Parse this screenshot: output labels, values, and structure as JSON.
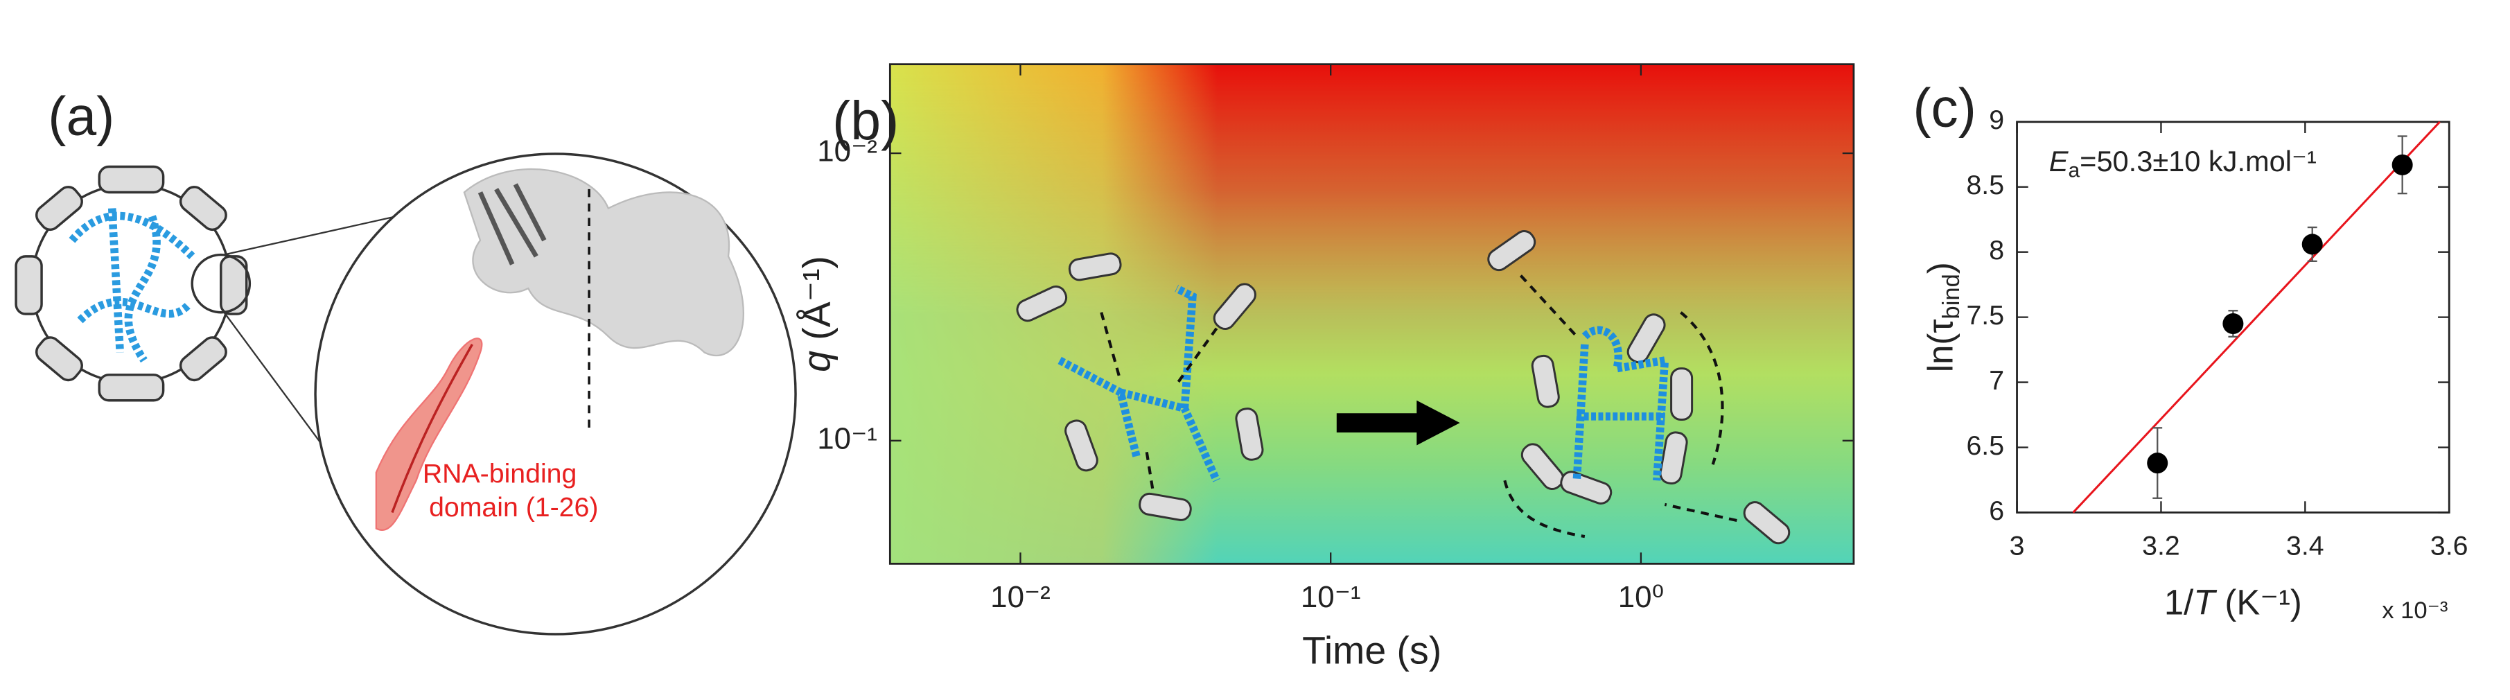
{
  "figure_a": {
    "label": "(a)",
    "annotation": [
      "RNA-binding",
      "domain (1-26)"
    ]
  },
  "chart_data": [
    {
      "type": "heatmap",
      "label": "(b)",
      "xlabel": [
        "Time (s)"
      ],
      "ylabel": [
        "q",
        " (Å⁻¹)"
      ],
      "xlog": true,
      "ylog": true,
      "y_inverted": true,
      "xlim": [
        0.0038,
        4.85
      ],
      "ylim": [
        0.0049,
        0.268
      ],
      "xticks": [
        {
          "value": 0.01,
          "label": "10⁻²"
        },
        {
          "value": 0.1,
          "label": "10⁻¹"
        },
        {
          "value": 1,
          "label": "10⁰"
        }
      ],
      "yticks": [
        {
          "value": 0.01,
          "label": "10⁻²"
        },
        {
          "value": 0.1,
          "label": "10⁻¹"
        }
      ]
    },
    {
      "type": "scatter",
      "label": "(c)",
      "xlabel": [
        "1/",
        "T",
        " (K⁻¹)"
      ],
      "ylabel": [
        "ln(τ",
        "bind",
        ")"
      ],
      "annotation": [
        "E",
        "a",
        "=50.3±10 kJ.mol⁻¹"
      ],
      "x_multiplier": "x 10⁻³",
      "x": [
        3.195,
        3.3,
        3.41,
        3.535
      ],
      "values": [
        6.38,
        7.45,
        8.06,
        8.67
      ],
      "errors": [
        0.27,
        0.1,
        0.13,
        0.22
      ],
      "color": "#000000",
      "xlim": [
        3,
        3.6
      ],
      "ylim": [
        6,
        9
      ],
      "xticks": [
        3,
        3.2,
        3.4,
        3.6
      ],
      "yticks": [
        6,
        6.5,
        7,
        7.5,
        8,
        8.5,
        9
      ],
      "fit": {
        "color": "#e8141c",
        "x": [
          3.078,
          3.587
        ],
        "y": [
          6,
          9
        ]
      }
    }
  ]
}
